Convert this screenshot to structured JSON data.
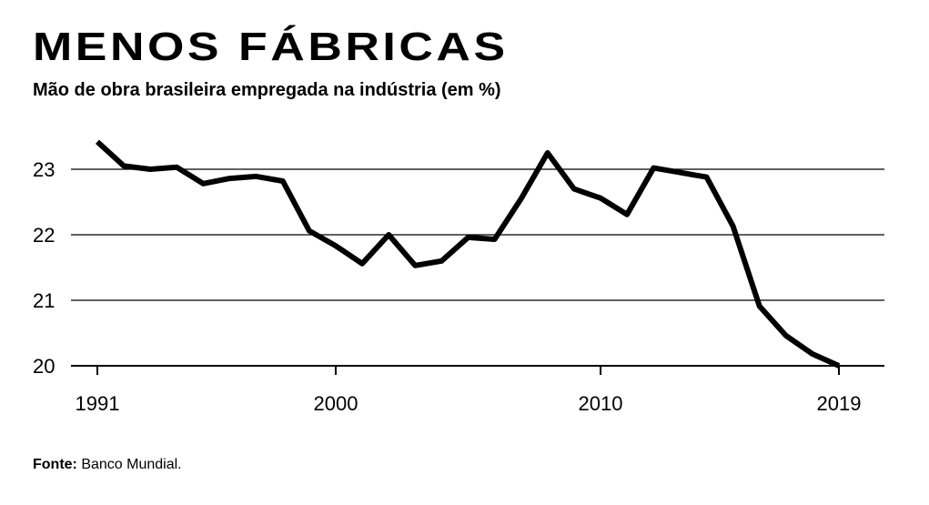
{
  "header": {
    "title": "MENOS FÁBRICAS",
    "subtitle": "Mão de obra brasileira empregada na indústria (em %)"
  },
  "footer": {
    "source_label": "Fonte:",
    "source_text": " Banco Mundial."
  },
  "colors": {
    "line": "#000000",
    "grid": "#000000",
    "background": "#ffffff"
  },
  "chart_data": {
    "type": "line",
    "title": "MENOS FÁBRICAS",
    "subtitle": "Mão de obra brasileira empregada na indústria (em %)",
    "xlabel": "",
    "ylabel": "",
    "xlim": [
      1991,
      2019
    ],
    "ylim": [
      20,
      23.4
    ],
    "x_ticks": [
      1991,
      2000,
      2010,
      2019
    ],
    "y_ticks": [
      20,
      21,
      22,
      23
    ],
    "grid": "horizontal",
    "legend": "none",
    "x": [
      1991,
      1992,
      1993,
      1994,
      1995,
      1996,
      1997,
      1998,
      1999,
      2000,
      2001,
      2002,
      2003,
      2004,
      2005,
      2006,
      2007,
      2008,
      2009,
      2010,
      2011,
      2012,
      2013,
      2014,
      2015,
      2016,
      2017,
      2018,
      2019
    ],
    "series": [
      {
        "values": [
          23.42,
          23.05,
          23.0,
          23.03,
          22.78,
          22.86,
          22.89,
          22.82,
          22.06,
          21.83,
          21.56,
          22.0,
          21.53,
          21.6,
          21.96,
          21.93,
          22.55,
          23.25,
          22.7,
          22.56,
          22.31,
          23.02,
          22.95,
          22.88,
          22.13,
          20.91,
          20.46,
          20.18,
          20.0
        ]
      }
    ]
  }
}
